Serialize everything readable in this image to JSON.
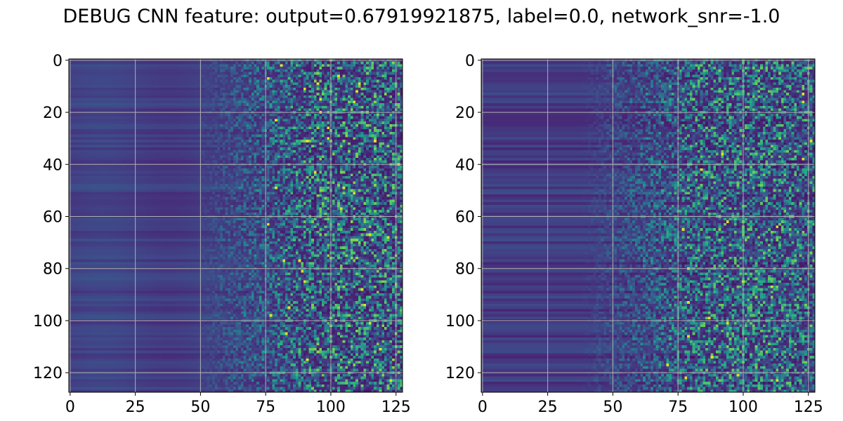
{
  "figure_title": "DEBUG CNN feature: output=0.67919921875, label=0.0, network_snr=-1.0",
  "chart_data": [
    {
      "type": "heatmap",
      "colormap": "viridis",
      "rows": 128,
      "cols": 128,
      "xlim": [
        -0.5,
        127.5
      ],
      "ylim": [
        127.5,
        -0.5
      ],
      "x_ticks": [
        0,
        25,
        50,
        75,
        100,
        125
      ],
      "y_ticks": [
        0,
        20,
        40,
        60,
        80,
        100,
        120
      ],
      "x_tick_labels": [
        "0",
        "25",
        "50",
        "75",
        "100",
        "125"
      ],
      "y_tick_labels": [
        "0",
        "20",
        "40",
        "60",
        "80",
        "100",
        "120"
      ],
      "grid": true,
      "pattern": "smooth dark-blue horizontal stripes for columns 0-50, increasingly noisy speckle toward columns 75-127 with sparse bright yellow-green pixels"
    },
    {
      "type": "heatmap",
      "colormap": "viridis",
      "rows": 128,
      "cols": 128,
      "xlim": [
        -0.5,
        127.5
      ],
      "ylim": [
        127.5,
        -0.5
      ],
      "x_ticks": [
        0,
        25,
        50,
        75,
        100,
        125
      ],
      "y_ticks": [
        0,
        20,
        40,
        60,
        80,
        100,
        120
      ],
      "x_tick_labels": [
        "0",
        "25",
        "50",
        "75",
        "100",
        "125"
      ],
      "y_tick_labels": [
        "0",
        "20",
        "40",
        "60",
        "80",
        "100",
        "120"
      ],
      "grid": true,
      "pattern": "darker horizontal stripes for columns 0-40, noisy speckle from column ~50 onward with bright teal clusters near columns 85-105"
    }
  ]
}
